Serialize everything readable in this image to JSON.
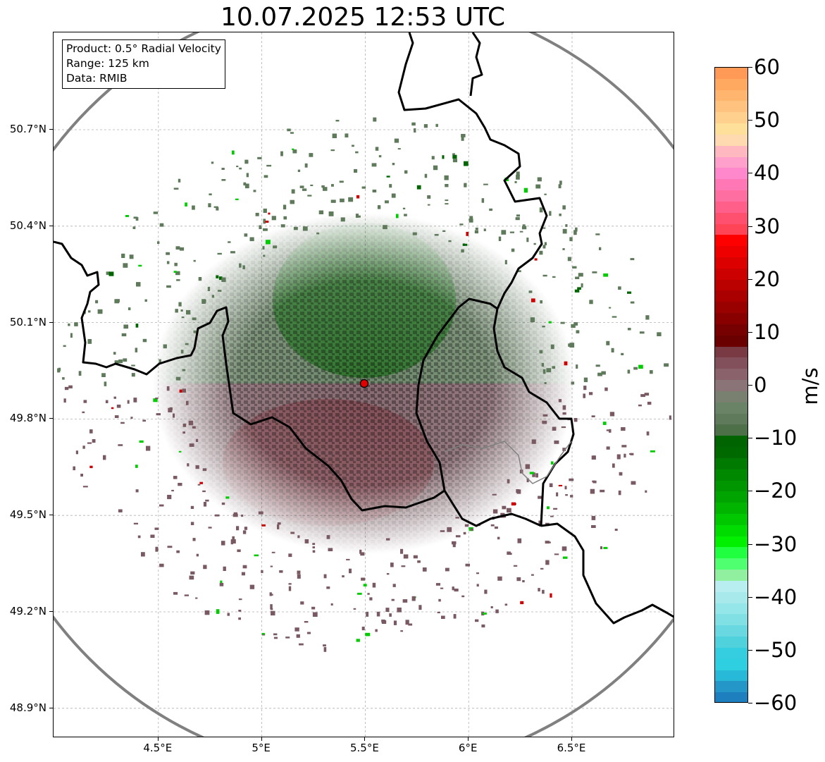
{
  "title": "10.07.2025 12:53 UTC",
  "info_box": {
    "product": "Product: 0.5° Radial Velocity",
    "range": "Range: 125 km",
    "data": "Data: RMIB"
  },
  "axes": {
    "y_ticks": [
      "50.7°N",
      "50.4°N",
      "50.1°N",
      "49.8°N",
      "49.5°N",
      "49.2°N",
      "48.9°N"
    ],
    "x_ticks": [
      "4.5°E",
      "5°E",
      "5.5°E",
      "6°E",
      "6.5°E"
    ],
    "lat_values": [
      50.7,
      50.4,
      50.1,
      49.8,
      49.5,
      49.2,
      48.9
    ],
    "lon_values": [
      4.5,
      5.0,
      5.5,
      6.0,
      6.5
    ],
    "lon_range": [
      4.0,
      7.0
    ],
    "lat_range": [
      48.8,
      51.0
    ],
    "grid": true
  },
  "radar": {
    "site_lon": 5.5,
    "site_lat": 49.914,
    "range_km": 125,
    "site_color": "#e00000",
    "ring_color": "#808080"
  },
  "colorbar": {
    "unit": "m/s",
    "min": -60,
    "max": 60,
    "tick_labels": [
      "60",
      "50",
      "40",
      "30",
      "20",
      "10",
      "0",
      "−10",
      "−20",
      "−30",
      "−40",
      "−50",
      "−60"
    ],
    "tick_values": [
      60,
      50,
      40,
      30,
      20,
      10,
      0,
      -10,
      -20,
      -30,
      -40,
      -50,
      -60
    ],
    "colors_top_to_bottom": [
      "#ff9955",
      "#ffa860",
      "#ffb56e",
      "#ffc37f",
      "#ffd08e",
      "#ffe09a",
      "#ffd9b0",
      "#ffb8bf",
      "#ffa0cc",
      "#ff88cc",
      "#ff78b5",
      "#ff6ea0",
      "#ff5f88",
      "#ff5070",
      "#ff4458",
      "#ff0000",
      "#ee0000",
      "#dd0000",
      "#cc0000",
      "#bb0000",
      "#aa0000",
      "#990000",
      "#880000",
      "#770000",
      "#6a0000",
      "#7a3a44",
      "#82505a",
      "#8a626c",
      "#8a7478",
      "#7a8070",
      "#6a8266",
      "#5e7a5a",
      "#4e7048",
      "#006400",
      "#006a00",
      "#007a00",
      "#008800",
      "#009600",
      "#00a400",
      "#00b400",
      "#00c800",
      "#00dc00",
      "#00f000",
      "#20ff40",
      "#50ff70",
      "#90f0a0",
      "#b8eef0",
      "#a8eaec",
      "#95e6e8",
      "#80e0e4",
      "#6ad8e0",
      "#50d2dc",
      "#35cde0",
      "#2ecfe0",
      "#28b8d8",
      "#2496c8",
      "#1e7fbe"
    ]
  },
  "velocity_field": {
    "inbound_north_color": "#5e7a5a",
    "inbound_strong_color": "#006400",
    "outbound_south_color": "#7a5a62",
    "outbound_strong_color": "#7a2a34"
  },
  "borders": {
    "country_color": "#000000",
    "internal_color": "#808080"
  }
}
